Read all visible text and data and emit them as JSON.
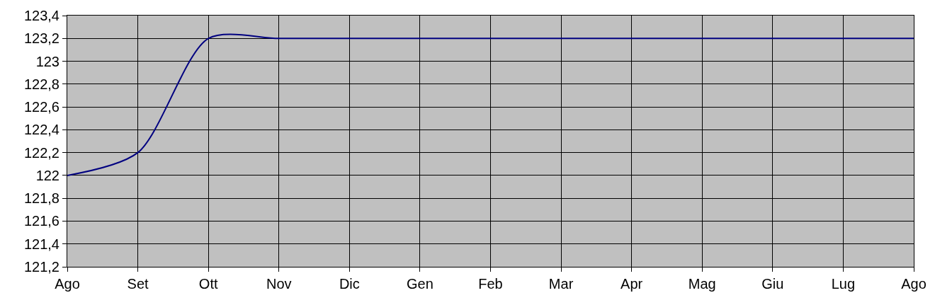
{
  "chart_data": {
    "type": "line",
    "categories": [
      "Ago",
      "Set",
      "Ott",
      "Nov",
      "Dic",
      "Gen",
      "Feb",
      "Mar",
      "Apr",
      "Mag",
      "Giu",
      "Lug",
      "Ago"
    ],
    "series": [
      {
        "color": "#000080",
        "values": [
          122,
          122.2,
          123.2,
          123.2,
          123.2,
          123.2,
          123.2,
          123.2,
          123.2,
          123.2,
          123.2,
          123.2,
          123.2
        ]
      }
    ],
    "ylim": [
      121.2,
      123.4
    ],
    "yticks": [
      {
        "value": 121.2,
        "label": "121,2"
      },
      {
        "value": 121.4,
        "label": "121,4"
      },
      {
        "value": 121.6,
        "label": "121,6"
      },
      {
        "value": 121.8,
        "label": "121,8"
      },
      {
        "value": 122,
        "label": "122"
      },
      {
        "value": 122.2,
        "label": "122,2"
      },
      {
        "value": 122.4,
        "label": "122,4"
      },
      {
        "value": 122.6,
        "label": "122,6"
      },
      {
        "value": 122.8,
        "label": "122,8"
      },
      {
        "value": 123,
        "label": "123"
      },
      {
        "value": 123.2,
        "label": "123,2"
      },
      {
        "value": 123.4,
        "label": "123,4"
      }
    ],
    "grid": true,
    "marker": "none",
    "line_style": "solid"
  }
}
